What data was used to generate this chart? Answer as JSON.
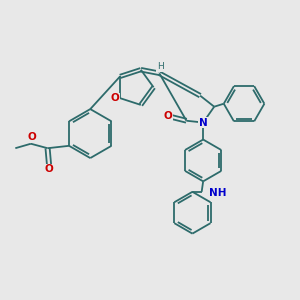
{
  "bg_color": "#e8e8e8",
  "bond_color": "#2d6b6b",
  "bond_lw": 1.3,
  "N_color": "#0000cc",
  "O_color": "#cc0000",
  "figsize": [
    3.0,
    3.0
  ],
  "dpi": 100,
  "xlim": [
    0,
    10
  ],
  "ylim": [
    0,
    10
  ]
}
